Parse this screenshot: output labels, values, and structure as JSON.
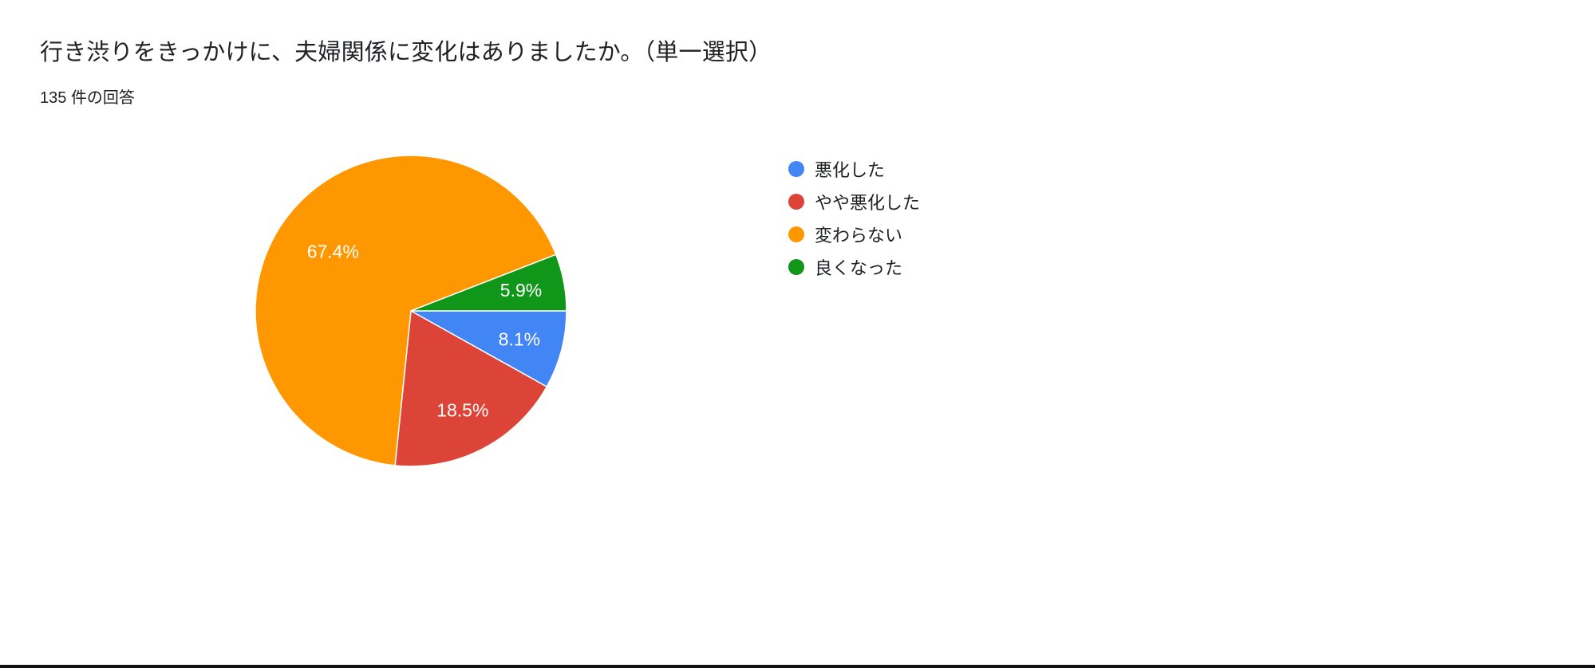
{
  "header": {
    "title": "行き渋りをきっかけに、夫婦関係に変化はありましたか。（単一選択）",
    "response_count": "135 件の回答"
  },
  "chart_data": {
    "type": "pie",
    "title": "行き渋りをきっかけに、夫婦関係に変化はありましたか。（単一選択）",
    "subtitle": "135 件の回答",
    "labels": [
      "悪化した",
      "やや悪化した",
      "変わらない",
      "良くなった"
    ],
    "values": [
      8.1,
      18.5,
      67.4,
      5.9
    ],
    "value_labels": [
      "8.1%",
      "18.5%",
      "67.4%",
      "5.9%"
    ],
    "colors": [
      "#4285F4",
      "#DB4437",
      "#FF9800",
      "#109618"
    ],
    "slice_border_color": "#ffffff",
    "legend_position": "right",
    "start_angle_deg": 0,
    "direction": "clockwise"
  }
}
